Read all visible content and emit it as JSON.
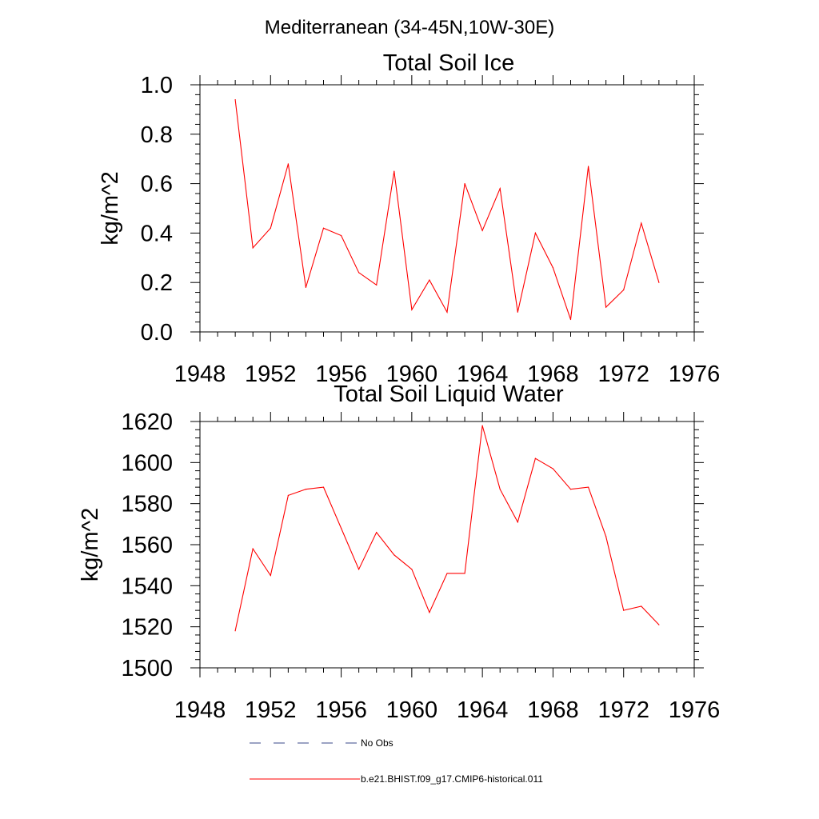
{
  "suptitle": "Mediterranean (34-45N,10W-30E)",
  "legend": {
    "entries": [
      {
        "label": "No Obs",
        "color": "#3a4a8a",
        "dash": true
      },
      {
        "label": "b.e21.BHIST.f09_g17.CMIP6-historical.011",
        "color": "#ff0000",
        "dash": false
      }
    ]
  },
  "chart_data": [
    {
      "type": "line",
      "title": "Total Soil Ice",
      "ylabel": "kg/m^2",
      "xlabel": "",
      "xlim": [
        1948,
        1976
      ],
      "ylim": [
        0.0,
        1.0
      ],
      "xticks": [
        1948,
        1952,
        1956,
        1960,
        1964,
        1968,
        1972,
        1976
      ],
      "yticks": [
        "0.0",
        "0.2",
        "0.4",
        "0.6",
        "0.8",
        "1.0"
      ],
      "series": [
        {
          "name": "b.e21.BHIST.f09_g17.CMIP6-historical.011",
          "color": "#ff0000",
          "x": [
            1950,
            1951,
            1952,
            1953,
            1954,
            1955,
            1956,
            1957,
            1958,
            1959,
            1960,
            1961,
            1962,
            1963,
            1964,
            1965,
            1966,
            1967,
            1968,
            1969,
            1970,
            1971,
            1972,
            1973,
            1974
          ],
          "y": [
            0.94,
            0.34,
            0.42,
            0.68,
            0.18,
            0.42,
            0.39,
            0.24,
            0.19,
            0.65,
            0.09,
            0.21,
            0.08,
            0.6,
            0.41,
            0.58,
            0.08,
            0.4,
            0.26,
            0.05,
            0.67,
            0.1,
            0.17,
            0.44,
            0.2
          ]
        }
      ]
    },
    {
      "type": "line",
      "title": "Total Soil Liquid Water",
      "ylabel": "kg/m^2",
      "xlabel": "",
      "xlim": [
        1948,
        1976
      ],
      "ylim": [
        1500,
        1620
      ],
      "xticks": [
        1948,
        1952,
        1956,
        1960,
        1964,
        1968,
        1972,
        1976
      ],
      "yticks": [
        "1500",
        "1520",
        "1540",
        "1560",
        "1580",
        "1600",
        "1620"
      ],
      "series": [
        {
          "name": "b.e21.BHIST.f09_g17.CMIP6-historical.011",
          "color": "#ff0000",
          "x": [
            1950,
            1951,
            1952,
            1953,
            1954,
            1955,
            1956,
            1957,
            1958,
            1959,
            1960,
            1961,
            1962,
            1963,
            1964,
            1965,
            1966,
            1967,
            1968,
            1969,
            1970,
            1971,
            1972,
            1973,
            1974
          ],
          "y": [
            1518,
            1558,
            1545,
            1584,
            1587,
            1588,
            1568,
            1548,
            1566,
            1555,
            1548,
            1527,
            1546,
            1546,
            1618,
            1587,
            1571,
            1602,
            1597,
            1587,
            1588,
            1564,
            1528,
            1530,
            1521
          ]
        }
      ]
    }
  ]
}
